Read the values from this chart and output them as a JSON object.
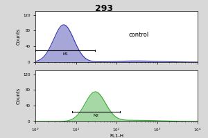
{
  "title": "293",
  "title_fontsize": 9,
  "title_fontweight": "bold",
  "background_color": "#d8d8d8",
  "plot_bg_color": "#ffffff",
  "top_hist_color": "#3333aa",
  "top_hist_fill": "#8888cc",
  "bottom_hist_color": "#33aa33",
  "bottom_hist_fill": "#88cc88",
  "xlabel": "FL1-H",
  "ylabel": "Counts",
  "xlabel_fontsize": 5,
  "ylabel_fontsize": 5,
  "tick_fontsize": 4,
  "ylim": [
    0,
    130
  ],
  "yticks": [
    0,
    40,
    80,
    120
  ],
  "top_gate_label": "M1",
  "bottom_gate_label": "M2",
  "control_label": "control",
  "control_label_fontsize": 6,
  "top_peak_center": 5.0,
  "top_peak_height": 95,
  "top_peak_sigma": 3.5,
  "bottom_peak_center": 30.0,
  "bottom_peak_height": 75,
  "bottom_peak_sigma": 20.0,
  "top_gate_start": 1.0,
  "top_gate_end": 30.0,
  "bottom_gate_start": 8.0,
  "bottom_gate_end": 120.0,
  "top_gate_y": 30,
  "bottom_gate_y": 25,
  "xlim": [
    1.0,
    10000.0
  ]
}
